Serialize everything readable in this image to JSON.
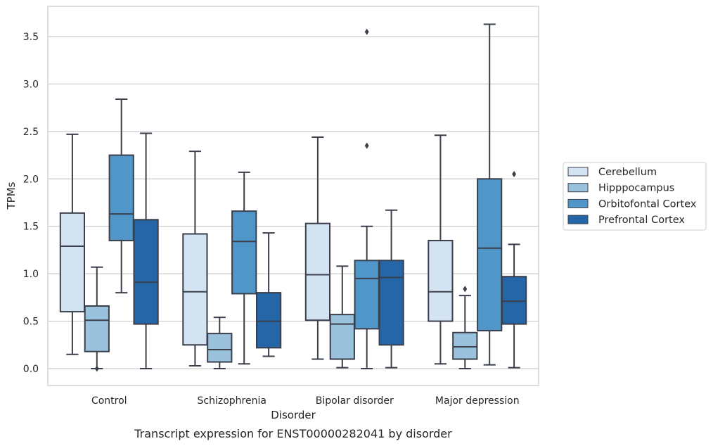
{
  "chart_data": {
    "type": "box",
    "title": "",
    "caption": "Transcript expression for ENST00000282041 by disorder",
    "xlabel": "Disorder",
    "ylabel": "TPMs",
    "ylim": [
      -0.17,
      3.8
    ],
    "yticks": [
      "0.0",
      "0.5",
      "1.0",
      "1.5",
      "2.0",
      "2.5",
      "3.0",
      "3.5"
    ],
    "grid": "horizontal",
    "legend_position": "right",
    "categories": [
      "Control",
      "Schizophrenia",
      "Bipolar disorder",
      "Major depression"
    ],
    "series": [
      {
        "name": "Cerebellum",
        "color": "#d3e3f2",
        "boxes": [
          {
            "whislo": 0.15,
            "q1": 0.6,
            "med": 1.29,
            "q3": 1.64,
            "whishi": 2.47,
            "fliers": []
          },
          {
            "whislo": 0.03,
            "q1": 0.25,
            "med": 0.81,
            "q3": 1.42,
            "whishi": 2.29,
            "fliers": []
          },
          {
            "whislo": 0.1,
            "q1": 0.51,
            "med": 0.99,
            "q3": 1.53,
            "whishi": 2.44,
            "fliers": []
          },
          {
            "whislo": 0.05,
            "q1": 0.5,
            "med": 0.81,
            "q3": 1.35,
            "whishi": 2.46,
            "fliers": []
          }
        ]
      },
      {
        "name": "Hipppocampus",
        "color": "#9ac2dd",
        "boxes": [
          {
            "whislo": 0.0,
            "q1": 0.18,
            "med": 0.51,
            "q3": 0.66,
            "whishi": 1.07,
            "fliers": [
              0.0
            ]
          },
          {
            "whislo": 0.0,
            "q1": 0.07,
            "med": 0.2,
            "q3": 0.37,
            "whishi": 0.54,
            "fliers": []
          },
          {
            "whislo": 0.01,
            "q1": 0.1,
            "med": 0.47,
            "q3": 0.57,
            "whishi": 1.08,
            "fliers": []
          },
          {
            "whislo": 0.0,
            "q1": 0.1,
            "med": 0.23,
            "q3": 0.38,
            "whishi": 0.77,
            "fliers": [
              0.84
            ]
          }
        ]
      },
      {
        "name": "Orbitofontal Cortex",
        "color": "#5096c8",
        "boxes": [
          {
            "whislo": 0.8,
            "q1": 1.35,
            "med": 1.63,
            "q3": 2.25,
            "whishi": 2.84,
            "fliers": []
          },
          {
            "whislo": 0.05,
            "q1": 0.79,
            "med": 1.34,
            "q3": 1.66,
            "whishi": 2.07,
            "fliers": []
          },
          {
            "whislo": 0.0,
            "q1": 0.42,
            "med": 0.95,
            "q3": 1.14,
            "whishi": 1.5,
            "fliers": [
              2.35,
              3.55
            ]
          },
          {
            "whislo": 0.04,
            "q1": 0.4,
            "med": 1.27,
            "q3": 2.0,
            "whishi": 3.63,
            "fliers": []
          }
        ]
      },
      {
        "name": "Prefrontal Cortex",
        "color": "#2466a8",
        "boxes": [
          {
            "whislo": 0.0,
            "q1": 0.47,
            "med": 0.91,
            "q3": 1.57,
            "whishi": 2.48,
            "fliers": []
          },
          {
            "whislo": 0.13,
            "q1": 0.22,
            "med": 0.5,
            "q3": 0.8,
            "whishi": 1.43,
            "fliers": []
          },
          {
            "whislo": 0.01,
            "q1": 0.25,
            "med": 0.96,
            "q3": 1.14,
            "whishi": 1.67,
            "fliers": []
          },
          {
            "whislo": 0.01,
            "q1": 0.47,
            "med": 0.71,
            "q3": 0.97,
            "whishi": 1.31,
            "fliers": [
              2.05
            ]
          }
        ]
      }
    ]
  }
}
